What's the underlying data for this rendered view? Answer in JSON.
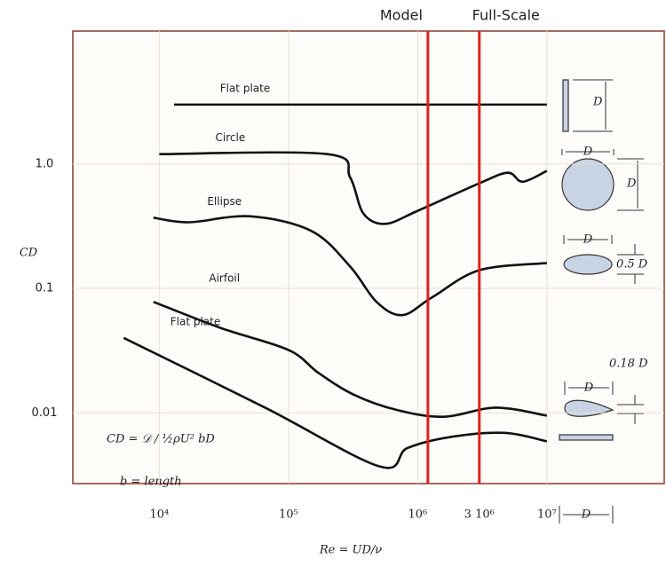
{
  "chart_data": {
    "type": "line",
    "xlabel": "Re = UD/ν",
    "ylabel": "CD",
    "log_x": true,
    "log_y": true,
    "grid": true,
    "xlim": [
      2140,
      81000000
    ],
    "ylim": [
      0.0027,
      11.7
    ],
    "xticks": [
      {
        "value": 10000,
        "label": "10⁴"
      },
      {
        "value": 100000,
        "label": "10⁵"
      },
      {
        "value": 1000000,
        "label": "10⁶"
      },
      {
        "value": 3000000,
        "label": "3 10⁶"
      },
      {
        "value": 10000000,
        "label": "10⁷"
      }
    ],
    "yticks": [
      {
        "value": 1,
        "label": "1.0"
      },
      0.1,
      0.01
    ],
    "series": [
      {
        "name": "Flat plate",
        "color": "#111111",
        "x": [
          13000,
          10000000
        ],
        "values": [
          3.0,
          3.0
        ]
      },
      {
        "name": "Circle",
        "color": "#111111",
        "x": [
          10000,
          200000,
          300000,
          380000,
          560000,
          1000000,
          3000000,
          5000000,
          6500000,
          10000000
        ],
        "values": [
          1.2,
          1.2,
          0.78,
          0.4,
          0.33,
          0.42,
          0.7,
          0.85,
          0.72,
          0.88
        ]
      },
      {
        "name": "Ellipse",
        "color": "#111111",
        "x": [
          9000,
          17000,
          50000,
          150000,
          300000,
          480000,
          760000,
          1300000,
          3000000,
          10000000
        ],
        "values": [
          0.37,
          0.34,
          0.38,
          0.29,
          0.15,
          0.078,
          0.061,
          0.085,
          0.14,
          0.16
        ]
      },
      {
        "name": "Airfoil",
        "color": "#111111",
        "x": [
          9000,
          30000,
          100000,
          170000,
          320000,
          700000,
          1600000,
          4000000,
          10000000
        ],
        "values": [
          0.078,
          0.048,
          0.032,
          0.021,
          0.014,
          0.0105,
          0.0093,
          0.011,
          0.0095
        ]
      },
      {
        "name": "Flat plate",
        "color": "#111111",
        "x": [
          5300,
          66000,
          510000,
          830000,
          1800000,
          4700000,
          10000000
        ],
        "values": [
          0.04,
          0.011,
          0.0037,
          0.0052,
          0.0064,
          0.0069,
          0.0059
        ]
      }
    ],
    "reference_lines": [
      {
        "label": "Model",
        "value": 1200000,
        "color": "#e0201b"
      },
      {
        "label": "Full-Scale",
        "value": 3000000,
        "color": "#e0201b"
      }
    ],
    "formula": "CD = 𝒟 / ½ρU² bD",
    "formula_note": "b = length",
    "shape_labels": [
      "D",
      "D",
      "D",
      "D",
      "0.5 D",
      "0.18 D",
      "D",
      "D"
    ]
  }
}
